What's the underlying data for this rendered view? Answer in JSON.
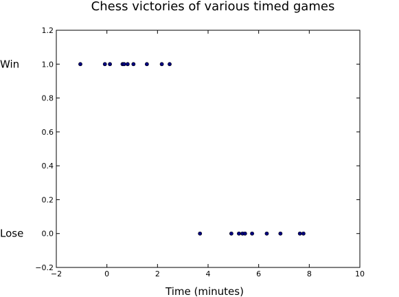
{
  "chart_data": {
    "type": "scatter",
    "title": "Chess victories of various timed games",
    "xlabel": "Time (minutes)",
    "ylabel": "",
    "xlim": [
      -2,
      10
    ],
    "ylim": [
      -0.2,
      1.2
    ],
    "xticks": [
      "−2",
      "0",
      "2",
      "4",
      "6",
      "8",
      "10"
    ],
    "yticks": [
      "−0.2",
      "0.0",
      "0.2",
      "0.4",
      "0.6",
      "0.8",
      "1.0",
      "1.2"
    ],
    "outcome_labels": [
      {
        "text": "Win",
        "y": 1.0
      },
      {
        "text": "Lose",
        "y": 0.0
      }
    ],
    "marker_color": "#000080",
    "grid": false,
    "series": [
      {
        "x": [
          -1.05,
          -0.08,
          0.12,
          0.62,
          0.68,
          0.82,
          1.05,
          1.58,
          2.17,
          2.48,
          3.68,
          4.92,
          5.22,
          5.36,
          5.46,
          5.74,
          6.32,
          6.86,
          7.63,
          7.77
        ],
        "y": [
          1,
          1,
          1,
          1,
          1,
          1,
          1,
          1,
          1,
          1,
          0,
          0,
          0,
          0,
          0,
          0,
          0,
          0,
          0,
          0
        ]
      }
    ]
  }
}
